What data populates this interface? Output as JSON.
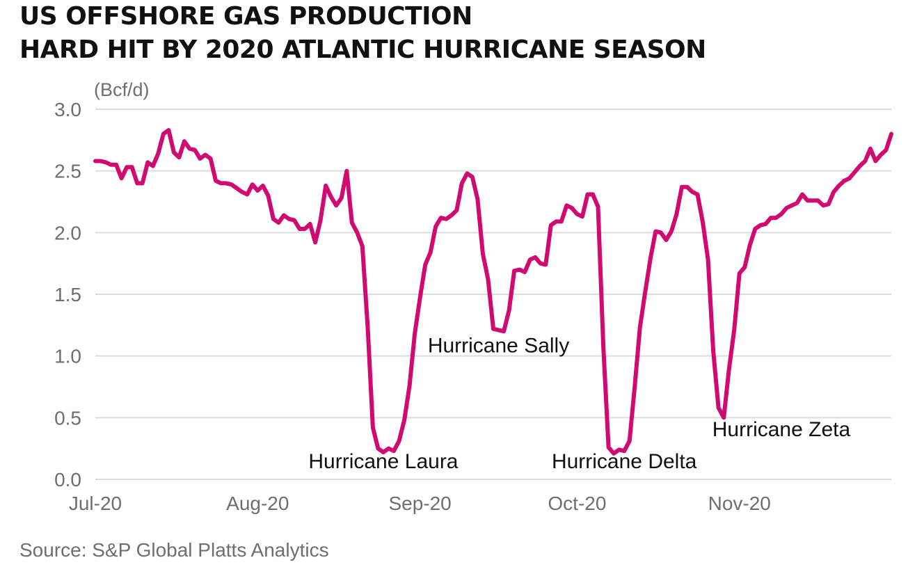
{
  "title": {
    "line1": "US OFFSHORE GAS PRODUCTION",
    "line2": "HARD HIT BY 2020 ATLANTIC HURRICANE SEASON"
  },
  "source": "Source: S&P Global Platts Analytics",
  "colors": {
    "line": "#d10a72",
    "grid": "#dcdcdc",
    "axis_text": "#6e6e6e",
    "annotation": "#111111"
  },
  "chart_data": {
    "type": "line",
    "ylabel": "(Bcf/d)",
    "ylim": [
      0,
      3.0
    ],
    "yticks": [
      "0.0",
      "0.5",
      "1.0",
      "1.5",
      "2.0",
      "2.5",
      "3.0"
    ],
    "xlim": [
      0,
      148
    ],
    "xticks": [
      {
        "label": "Jul-20",
        "x": 0
      },
      {
        "label": "Aug-20",
        "x": 31
      },
      {
        "label": "Sep-20",
        "x": 62
      },
      {
        "label": "Oct-20",
        "x": 92
      },
      {
        "label": "Nov-20",
        "x": 123
      }
    ],
    "grid": true,
    "series": [
      {
        "points": [
          [
            0,
            2.58
          ],
          [
            1,
            2.58
          ],
          [
            2,
            2.57
          ],
          [
            3,
            2.55
          ],
          [
            4,
            2.55
          ],
          [
            5,
            2.44
          ],
          [
            6,
            2.53
          ],
          [
            7,
            2.53
          ],
          [
            8,
            2.4
          ],
          [
            9,
            2.4
          ],
          [
            10,
            2.57
          ],
          [
            11,
            2.54
          ],
          [
            12,
            2.64
          ],
          [
            13,
            2.8
          ],
          [
            14,
            2.83
          ],
          [
            15,
            2.65
          ],
          [
            16,
            2.61
          ],
          [
            17,
            2.74
          ],
          [
            18,
            2.68
          ],
          [
            19,
            2.67
          ],
          [
            20,
            2.6
          ],
          [
            21,
            2.63
          ],
          [
            22,
            2.6
          ],
          [
            23,
            2.42
          ],
          [
            24,
            2.4
          ],
          [
            25,
            2.4
          ],
          [
            26,
            2.39
          ],
          [
            27,
            2.36
          ],
          [
            28,
            2.33
          ],
          [
            29,
            2.31
          ],
          [
            30,
            2.39
          ],
          [
            31,
            2.34
          ],
          [
            32,
            2.38
          ],
          [
            33,
            2.3
          ],
          [
            34,
            2.11
          ],
          [
            35,
            2.08
          ],
          [
            36,
            2.14
          ],
          [
            37,
            2.11
          ],
          [
            38,
            2.1
          ],
          [
            39,
            2.03
          ],
          [
            40,
            2.03
          ],
          [
            41,
            2.07
          ],
          [
            42,
            1.92
          ],
          [
            43,
            2.1
          ],
          [
            44,
            2.38
          ],
          [
            45,
            2.29
          ],
          [
            46,
            2.22
          ],
          [
            47,
            2.28
          ],
          [
            48,
            2.5
          ],
          [
            49,
            2.08
          ],
          [
            50,
            2.0
          ],
          [
            51,
            1.89
          ],
          [
            52,
            1.24
          ],
          [
            53,
            0.42
          ],
          [
            54,
            0.25
          ],
          [
            55,
            0.22
          ],
          [
            56,
            0.25
          ],
          [
            57,
            0.23
          ],
          [
            58,
            0.31
          ],
          [
            59,
            0.48
          ],
          [
            60,
            0.76
          ],
          [
            61,
            1.18
          ],
          [
            62,
            1.47
          ],
          [
            63,
            1.74
          ],
          [
            64,
            1.84
          ],
          [
            65,
            2.05
          ],
          [
            66,
            2.12
          ],
          [
            67,
            2.11
          ],
          [
            68,
            2.14
          ],
          [
            69,
            2.18
          ],
          [
            70,
            2.4
          ],
          [
            71,
            2.48
          ],
          [
            72,
            2.45
          ],
          [
            73,
            2.27
          ],
          [
            74,
            1.83
          ],
          [
            75,
            1.62
          ],
          [
            76,
            1.22
          ],
          [
            77,
            1.21
          ],
          [
            78,
            1.2
          ],
          [
            79,
            1.37
          ],
          [
            80,
            1.69
          ],
          [
            81,
            1.7
          ],
          [
            82,
            1.68
          ],
          [
            83,
            1.78
          ],
          [
            84,
            1.8
          ],
          [
            85,
            1.75
          ],
          [
            86,
            1.74
          ],
          [
            87,
            2.06
          ],
          [
            88,
            2.09
          ],
          [
            89,
            2.09
          ],
          [
            90,
            2.22
          ],
          [
            91,
            2.2
          ],
          [
            92,
            2.15
          ],
          [
            93,
            2.13
          ],
          [
            94,
            2.31
          ],
          [
            95,
            2.31
          ],
          [
            96,
            2.21
          ],
          [
            97,
            1.08
          ],
          [
            98,
            0.26
          ],
          [
            99,
            0.21
          ],
          [
            100,
            0.24
          ],
          [
            101,
            0.23
          ],
          [
            102,
            0.31
          ],
          [
            103,
            0.75
          ],
          [
            104,
            1.23
          ],
          [
            105,
            1.52
          ],
          [
            106,
            1.79
          ],
          [
            107,
            2.01
          ],
          [
            108,
            2.0
          ],
          [
            109,
            1.94
          ],
          [
            110,
            2.01
          ],
          [
            111,
            2.15
          ],
          [
            112,
            2.37
          ],
          [
            113,
            2.37
          ],
          [
            114,
            2.33
          ],
          [
            115,
            2.31
          ],
          [
            116,
            2.08
          ],
          [
            117,
            1.78
          ],
          [
            118,
            1.04
          ],
          [
            119,
            0.58
          ],
          [
            120,
            0.5
          ],
          [
            121,
            0.89
          ],
          [
            122,
            1.21
          ],
          [
            123,
            1.67
          ],
          [
            124,
            1.72
          ],
          [
            125,
            1.9
          ],
          [
            126,
            2.03
          ],
          [
            127,
            2.06
          ],
          [
            128,
            2.07
          ],
          [
            129,
            2.12
          ],
          [
            130,
            2.12
          ],
          [
            131,
            2.15
          ],
          [
            132,
            2.2
          ],
          [
            133,
            2.22
          ],
          [
            134,
            2.24
          ],
          [
            135,
            2.31
          ],
          [
            136,
            2.26
          ],
          [
            137,
            2.26
          ],
          [
            138,
            2.26
          ],
          [
            139,
            2.22
          ],
          [
            140,
            2.23
          ],
          [
            141,
            2.33
          ],
          [
            142,
            2.38
          ],
          [
            143,
            2.42
          ],
          [
            144,
            2.44
          ],
          [
            145,
            2.49
          ],
          [
            146,
            2.54
          ],
          [
            147,
            2.58
          ],
          [
            148,
            2.68
          ],
          [
            149,
            2.58
          ],
          [
            150,
            2.63
          ],
          [
            151,
            2.67
          ],
          [
            152,
            2.8
          ]
        ]
      }
    ],
    "annotations": [
      {
        "text": "Hurricane Laura",
        "x": 55,
        "y": 0.09
      },
      {
        "text": "Hurricane Sally",
        "x": 77,
        "y": 1.03
      },
      {
        "text": "Hurricane Delta",
        "x": 101,
        "y": 0.09
      },
      {
        "text": "Hurricane Zeta",
        "x": 131,
        "y": 0.35
      }
    ]
  }
}
